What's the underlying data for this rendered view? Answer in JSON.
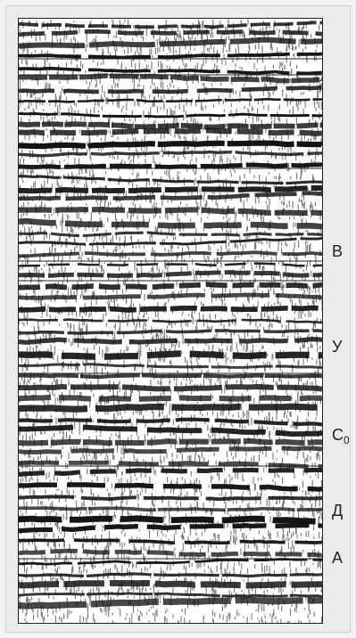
{
  "horizons": [
    {
      "id": "B",
      "label": "В",
      "subscript": ""
    },
    {
      "id": "U",
      "label": "У",
      "subscript": ""
    },
    {
      "id": "C0",
      "label": "С",
      "subscript": "0"
    },
    {
      "id": "D",
      "label": "Д",
      "subscript": ""
    },
    {
      "id": "A",
      "label": "А",
      "subscript": ""
    }
  ],
  "colors": {
    "ink": "#111111",
    "paper": "#ffffff",
    "grid": "#222222"
  }
}
